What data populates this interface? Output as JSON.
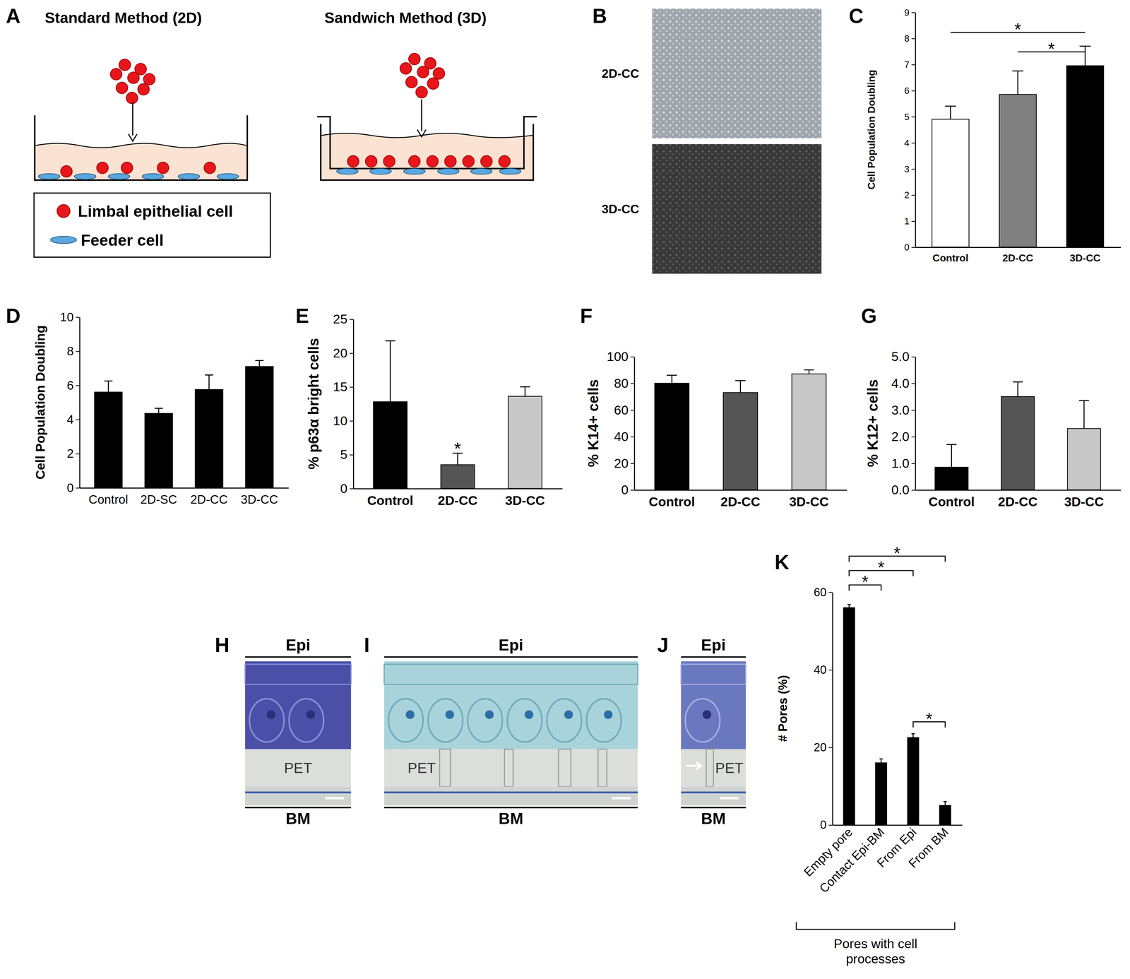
{
  "panel_a": {
    "label": "A",
    "left_title": "Standard Method (2D)",
    "right_title": "Sandwich Method (3D)",
    "legend": [
      {
        "name": "Limbal epithelial cell",
        "color": "#e8161b"
      },
      {
        "name": "Feeder cell",
        "color": "#5aa8e0"
      }
    ]
  },
  "panel_b": {
    "label": "B",
    "images": [
      "2D-CC",
      "3D-CC"
    ]
  },
  "micrographs": [
    {
      "label": "H",
      "top": "Epi",
      "middle": "PET",
      "bottom": "BM"
    },
    {
      "label": "I",
      "top": "Epi",
      "middle": "PET",
      "bottom": "BM"
    },
    {
      "label": "J",
      "top": "Epi",
      "middle": "PET",
      "bottom": "BM"
    }
  ],
  "chart_data": [
    {
      "type": "bar",
      "title": "C",
      "categories": [
        "Control",
        "2D-CC",
        "3D-CC"
      ],
      "values": [
        4.9,
        5.85,
        6.95
      ],
      "errors": [
        0.5,
        0.9,
        0.75
      ],
      "colors": [
        "#ffffff",
        "#808080",
        "#000000"
      ],
      "ylabel": "Cell Population Doubling",
      "ylim": [
        0,
        9
      ],
      "yticks": [
        0,
        1,
        2,
        3,
        4,
        5,
        6,
        7,
        8,
        9
      ],
      "significance": [
        {
          "from": "Control",
          "to": "3D-CC",
          "text": "*"
        },
        {
          "from": "2D-CC",
          "to": "3D-CC",
          "text": "*"
        }
      ]
    },
    {
      "type": "bar",
      "title": "D",
      "categories": [
        "Control",
        "2D-SC",
        "2D-CC",
        "3D-CC"
      ],
      "values": [
        5.6,
        4.35,
        5.75,
        7.1
      ],
      "errors": [
        0.65,
        0.3,
        0.85,
        0.35
      ],
      "color": "#000000",
      "ylabel": "Cell Population Doubling",
      "ylim": [
        0,
        10
      ],
      "yticks": [
        0,
        2,
        4,
        6,
        8,
        10
      ]
    },
    {
      "type": "bar",
      "title": "E",
      "categories": [
        "Control",
        "2D-CC",
        "3D-CC"
      ],
      "values": [
        12.8,
        3.5,
        13.6
      ],
      "errors": [
        9,
        1.7,
        1.4
      ],
      "colors": [
        "#000000",
        "#555555",
        "#c8c8c8"
      ],
      "ylabel": "% p63α bright cells",
      "ylim": [
        0,
        25
      ],
      "yticks": [
        0,
        5,
        10,
        15,
        20,
        25
      ],
      "significance": [
        {
          "at": "2D-CC",
          "text": "*"
        }
      ]
    },
    {
      "type": "bar",
      "title": "F",
      "categories": [
        "Control",
        "2D-CC",
        "3D-CC"
      ],
      "values": [
        80,
        73,
        87
      ],
      "errors": [
        6,
        9,
        3
      ],
      "colors": [
        "#000000",
        "#555555",
        "#c8c8c8"
      ],
      "ylabel": "% K14+ cells",
      "ylim": [
        0,
        100
      ],
      "yticks": [
        0,
        20,
        40,
        60,
        80,
        100
      ]
    },
    {
      "type": "bar",
      "title": "G",
      "categories": [
        "Control",
        "2D-CC",
        "3D-CC"
      ],
      "values": [
        0.85,
        3.5,
        2.3
      ],
      "errors": [
        0.85,
        0.55,
        1.05
      ],
      "colors": [
        "#000000",
        "#555555",
        "#c8c8c8"
      ],
      "ylabel": "% K12+ cells",
      "ylim": [
        0,
        5
      ],
      "yticks": [
        {
          "value": 0,
          "label": "0.0"
        },
        {
          "value": 1,
          "label": "1.0"
        },
        {
          "value": 2,
          "label": "2.0"
        },
        {
          "value": 3,
          "label": "3.0"
        },
        {
          "value": 4,
          "label": "4.0"
        },
        {
          "value": 5,
          "label": "5.0"
        }
      ]
    },
    {
      "type": "bar",
      "title": "K",
      "categories": [
        "Empty pore",
        "Contact Epi-BM",
        "From Epi",
        "From BM"
      ],
      "values": [
        56,
        16,
        22.5,
        5
      ],
      "errors": [
        0.8,
        1,
        1,
        1
      ],
      "color": "#000000",
      "ylabel": "# Pores (%)",
      "ylim": [
        0,
        60
      ],
      "yticks": [
        0,
        20,
        40,
        60
      ],
      "significance": [
        {
          "from": "Empty pore",
          "to": "Contact Epi-BM",
          "text": "*"
        },
        {
          "from": "Empty pore",
          "to": "From Epi",
          "text": "*"
        },
        {
          "from": "Empty pore",
          "to": "From BM",
          "text": "*"
        },
        {
          "from": "From Epi",
          "to": "From BM",
          "text": "*"
        }
      ],
      "group_label": "Pores with cell processes"
    }
  ]
}
